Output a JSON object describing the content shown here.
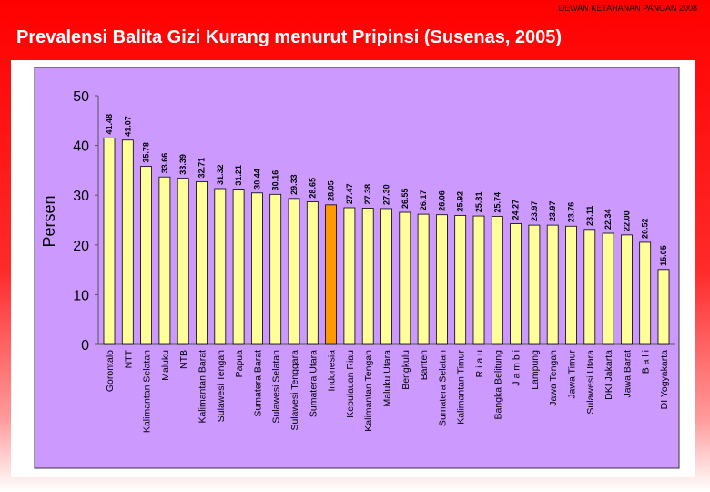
{
  "header": {
    "org": "DEWAN KETAHANAN PANGAN 2008"
  },
  "slide": {
    "title": "Prevalensi Balita Gizi Kurang menurut Pripinsi (Susenas, 2005)"
  },
  "colors": {
    "bar": "#ffff99",
    "highlight": "#ff9900",
    "plot_bg": "#cc99ff",
    "panel_bg": "#ffffff"
  },
  "chart_data": {
    "type": "bar",
    "ylabel": "Persen",
    "ylim": [
      0,
      50
    ],
    "yticks": [
      0,
      10,
      20,
      30,
      40,
      50
    ],
    "highlight": "Indonesia",
    "categories": [
      "Gorontalo",
      "NTT",
      "Kalimantan Selatan",
      "Maluku",
      "NTB",
      "Kalimantan Barat",
      "Sulawesi Tengah",
      "Papua",
      "Sumatera Barat",
      "Sulawesi Selatan",
      "Sulawesi Tenggara",
      "Sumatera Utara",
      "Indonesia",
      "Kepulauan Riau",
      "Kalimantan Tengah",
      "Maluku Utara",
      "Bengkulu",
      "Banten",
      "Sumatera Selatan",
      "Kalimantan Timur",
      "R i a u",
      "Bangka Belitung",
      "J a m b i",
      "Lampung",
      "Jawa Tengah",
      "Jawa Timur",
      "Sulawesi Utara",
      "DKI Jakarta",
      "Jawa Barat",
      "B a l i",
      "DI Yogyakarta"
    ],
    "values": [
      41.48,
      41.07,
      35.78,
      33.66,
      33.39,
      32.71,
      31.32,
      31.21,
      30.44,
      30.16,
      29.33,
      28.65,
      28.05,
      27.47,
      27.38,
      27.3,
      26.55,
      26.17,
      26.06,
      25.92,
      25.81,
      25.74,
      24.27,
      23.97,
      23.97,
      23.76,
      23.11,
      22.34,
      22.0,
      20.52,
      15.05
    ],
    "value_labels": [
      "41.48",
      "41.07",
      "35.78",
      "33.66",
      "33.39",
      "32.71",
      "31.32",
      "31.21",
      "30.44",
      "30.16",
      "29.33",
      "28.65",
      "28.05",
      "27.47",
      "27.38",
      "27.30",
      "26.55",
      "26.17",
      "26.06",
      "25.92",
      "25.81",
      "25.74",
      "24.27",
      "23.97",
      "23.97",
      "23.76",
      "23.11",
      "22.34",
      "22.00",
      "20.52",
      "15.05"
    ]
  }
}
